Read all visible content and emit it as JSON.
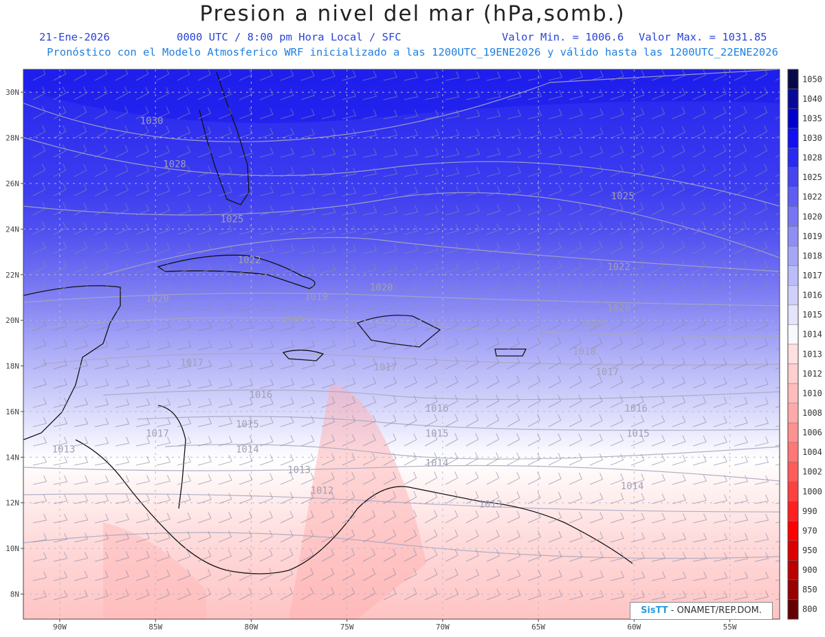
{
  "header": {
    "title": "Presion a nivel del mar (hPa,somb.)",
    "date": "21-Ene-2026",
    "time_info": "0000 UTC / 8:00 pm Hora Local / SFC",
    "min_label": "Valor Min. = 1006.6",
    "max_label": "Valor Max. = 1031.85",
    "model_info": "Pronóstico con el Modelo Atmosferico WRF inicializado a las 1200UTC_19ENE2026 y válido hasta las  1200UTC_22ENE2026"
  },
  "map": {
    "lat_labels": [
      "30N",
      "28N",
      "26N",
      "24N",
      "22N",
      "20N",
      "18N",
      "16N",
      "14N",
      "12N",
      "10N",
      "8N"
    ],
    "lat_values": [
      30,
      28,
      26,
      24,
      22,
      20,
      18,
      16,
      14,
      12,
      10,
      8
    ],
    "lon_labels": [
      "90W",
      "85W",
      "80W",
      "75W",
      "70W",
      "65W",
      "60W",
      "55W"
    ],
    "lon_values": [
      -90,
      -85,
      -80,
      -75,
      -70,
      -65,
      -60,
      -55
    ],
    "contour_labels": [
      {
        "text": "1030",
        "lon": -85.2,
        "lat": 28.6
      },
      {
        "text": "1028",
        "lon": -84.0,
        "lat": 26.7
      },
      {
        "text": "1025",
        "lon": -81.0,
        "lat": 24.3
      },
      {
        "text": "1025",
        "lon": -60.6,
        "lat": 25.3
      },
      {
        "text": "1022",
        "lon": -80.1,
        "lat": 22.5
      },
      {
        "text": "1022",
        "lon": -60.8,
        "lat": 22.2
      },
      {
        "text": "1020",
        "lon": -84.9,
        "lat": 20.8
      },
      {
        "text": "1020",
        "lon": -73.2,
        "lat": 21.3
      },
      {
        "text": "1020",
        "lon": -60.8,
        "lat": 20.4
      },
      {
        "text": "1019",
        "lon": -76.6,
        "lat": 20.9
      },
      {
        "text": "1018",
        "lon": -77.9,
        "lat": 19.9
      },
      {
        "text": "1018",
        "lon": -62.1,
        "lat": 19.7
      },
      {
        "text": "1018",
        "lon": -62.6,
        "lat": 18.5
      },
      {
        "text": "1017",
        "lon": -83.1,
        "lat": 18.0
      },
      {
        "text": "1017",
        "lon": -73.0,
        "lat": 17.8
      },
      {
        "text": "1017",
        "lon": -61.4,
        "lat": 17.6
      },
      {
        "text": "1016",
        "lon": -79.5,
        "lat": 16.6
      },
      {
        "text": "1016",
        "lon": -70.3,
        "lat": 16.0
      },
      {
        "text": "1016",
        "lon": -59.9,
        "lat": 16.0
      },
      {
        "text": "1015",
        "lon": -80.2,
        "lat": 15.3
      },
      {
        "text": "1015",
        "lon": -70.3,
        "lat": 14.9
      },
      {
        "text": "1015",
        "lon": -59.8,
        "lat": 14.9
      },
      {
        "text": "1014",
        "lon": -80.2,
        "lat": 14.2
      },
      {
        "text": "1014",
        "lon": -70.3,
        "lat": 13.6
      },
      {
        "text": "1014",
        "lon": -60.1,
        "lat": 12.6
      },
      {
        "text": "1013",
        "lon": -89.8,
        "lat": 14.2
      },
      {
        "text": "1013",
        "lon": -77.5,
        "lat": 13.3
      },
      {
        "text": "1013",
        "lon": -67.5,
        "lat": 11.8
      },
      {
        "text": "1012",
        "lon": -76.3,
        "lat": 12.4
      },
      {
        "text": "1017",
        "lon": -84.9,
        "lat": 14.9
      }
    ]
  },
  "legend": {
    "levels": [
      "1050",
      "1040",
      "1035",
      "1030",
      "1028",
      "1025",
      "1022",
      "1020",
      "1019",
      "1018",
      "1017",
      "1016",
      "1015",
      "1014",
      "1013",
      "1012",
      "1010",
      "1008",
      "1006",
      "1004",
      "1002",
      "1000",
      "990",
      "970",
      "950",
      "900",
      "850",
      "800"
    ],
    "colors": [
      "#08084a",
      "#0a0a9a",
      "#0000cd",
      "#1010f0",
      "#2a2af0",
      "#4545f0",
      "#5e5ef2",
      "#7676f4",
      "#8e8ef6",
      "#a6a6f8",
      "#bcbcfa",
      "#d0d0fb",
      "#e4e4fd",
      "#f8f8ff",
      "#ffe0e0",
      "#ffcece",
      "#ffbcbc",
      "#ffaaaa",
      "#ff9090",
      "#ff7777",
      "#ff5c5c",
      "#ff4040",
      "#ff2020",
      "#ff0000",
      "#dd0000",
      "#bb0000",
      "#990000",
      "#660000"
    ]
  },
  "credit": {
    "brand": "SisTT",
    "text": "- ONAMET/REP.DOM."
  }
}
